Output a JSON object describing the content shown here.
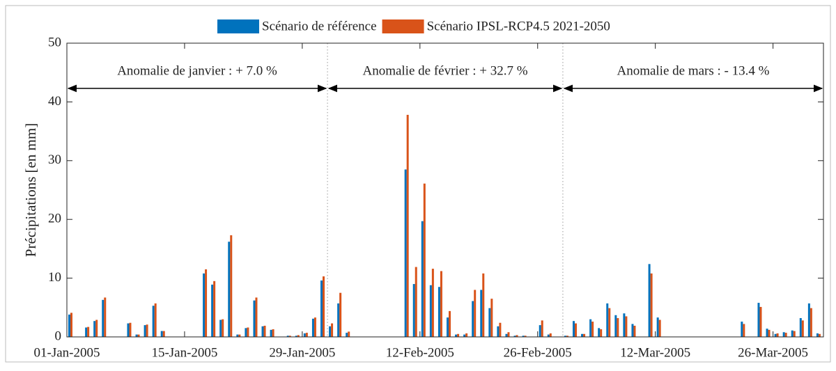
{
  "chart_data": {
    "type": "bar",
    "ylabel": "Précipitations [en mm]",
    "ylim": [
      0,
      50
    ],
    "yticks": [
      0,
      10,
      20,
      30,
      40,
      50
    ],
    "xlim": [
      "2005-01-01",
      "2005-04-01"
    ],
    "xticks": [
      {
        "value": "2005-01-01",
        "label": "01-Jan-2005"
      },
      {
        "value": "2005-01-15",
        "label": "15-Jan-2005"
      },
      {
        "value": "2005-01-29",
        "label": "29-Jan-2005"
      },
      {
        "value": "2005-02-12",
        "label": "12-Feb-2005"
      },
      {
        "value": "2005-02-26",
        "label": "26-Feb-2005"
      },
      {
        "value": "2005-03-12",
        "label": "12-Mar-2005"
      },
      {
        "value": "2005-03-26",
        "label": "26-Mar-2005"
      }
    ],
    "legend": "top",
    "annotations": [
      {
        "text": "Anomalie de janvier : + 7.0 %",
        "x": [
          "2005-01-01",
          "2005-02-01"
        ]
      },
      {
        "text": "Anomalie de février : + 32.7 %",
        "x": [
          "2005-02-01",
          "2005-03-01"
        ]
      },
      {
        "text": "Anomalie de mars : - 13.4 %",
        "x": [
          "2005-03-01",
          "2005-04-01"
        ]
      }
    ],
    "x": [
      "2005-01-01",
      "2005-01-02",
      "2005-01-03",
      "2005-01-04",
      "2005-01-05",
      "2005-01-06",
      "2005-01-07",
      "2005-01-08",
      "2005-01-09",
      "2005-01-10",
      "2005-01-11",
      "2005-01-12",
      "2005-01-13",
      "2005-01-14",
      "2005-01-15",
      "2005-01-16",
      "2005-01-17",
      "2005-01-18",
      "2005-01-19",
      "2005-01-20",
      "2005-01-21",
      "2005-01-22",
      "2005-01-23",
      "2005-01-24",
      "2005-01-25",
      "2005-01-26",
      "2005-01-27",
      "2005-01-28",
      "2005-01-29",
      "2005-01-30",
      "2005-01-31",
      "2005-02-01",
      "2005-02-02",
      "2005-02-03",
      "2005-02-04",
      "2005-02-05",
      "2005-02-06",
      "2005-02-07",
      "2005-02-08",
      "2005-02-09",
      "2005-02-10",
      "2005-02-11",
      "2005-02-12",
      "2005-02-13",
      "2005-02-14",
      "2005-02-15",
      "2005-02-16",
      "2005-02-17",
      "2005-02-18",
      "2005-02-19",
      "2005-02-20",
      "2005-02-21",
      "2005-02-22",
      "2005-02-23",
      "2005-02-24",
      "2005-02-25",
      "2005-02-26",
      "2005-02-27",
      "2005-02-28",
      "2005-03-01",
      "2005-03-02",
      "2005-03-03",
      "2005-03-04",
      "2005-03-05",
      "2005-03-06",
      "2005-03-07",
      "2005-03-08",
      "2005-03-09",
      "2005-03-10",
      "2005-03-11",
      "2005-03-12",
      "2005-03-13",
      "2005-03-14",
      "2005-03-15",
      "2005-03-16",
      "2005-03-17",
      "2005-03-18",
      "2005-03-19",
      "2005-03-20",
      "2005-03-21",
      "2005-03-22",
      "2005-03-23",
      "2005-03-24",
      "2005-03-25",
      "2005-03-26",
      "2005-03-27",
      "2005-03-28",
      "2005-03-29",
      "2005-03-30",
      "2005-03-31"
    ],
    "series": [
      {
        "name": "Scénario de référence",
        "color": "#0072bd",
        "values": [
          3.8,
          0,
          1.6,
          2.7,
          6.3,
          0,
          0,
          2.3,
          0.4,
          2.0,
          5.3,
          1.0,
          0,
          0,
          0,
          0,
          10.8,
          8.9,
          2.9,
          16.2,
          0.4,
          1.5,
          6.2,
          1.8,
          1.2,
          0,
          0.2,
          0.2,
          0.6,
          3.1,
          9.6,
          1.8,
          5.7,
          0.7,
          0,
          0,
          0,
          0,
          0,
          0,
          28.5,
          9.0,
          19.7,
          8.8,
          8.5,
          3.3,
          0.4,
          0.4,
          6.1,
          8.0,
          4.9,
          1.8,
          0.5,
          0.2,
          0.2,
          0,
          2.0,
          0.4,
          0,
          0.2,
          2.7,
          0.5,
          3.0,
          1.5,
          5.7,
          3.7,
          4.0,
          2.2,
          0,
          12.4,
          3.3,
          0,
          0,
          0,
          0,
          0,
          0,
          0,
          0,
          0,
          2.6,
          0,
          5.8,
          1.4,
          0.5,
          0.8,
          1.1,
          3.2,
          5.7,
          0.6
        ]
      },
      {
        "name": "Scénario IPSL-RCP4.5 2021-2050",
        "color": "#d95319",
        "values": [
          4.1,
          0,
          1.7,
          2.9,
          6.7,
          0,
          0,
          2.4,
          0.4,
          2.1,
          5.7,
          1.0,
          0,
          0,
          0,
          0,
          11.5,
          9.5,
          3.0,
          17.3,
          0.4,
          1.6,
          6.7,
          1.9,
          1.3,
          0,
          0.2,
          0.3,
          0.7,
          3.3,
          10.3,
          2.3,
          7.5,
          0.9,
          0,
          0,
          0,
          0,
          0,
          0,
          37.8,
          11.9,
          26.1,
          11.6,
          11.2,
          4.4,
          0.5,
          0.6,
          8.0,
          10.8,
          6.5,
          2.4,
          0.8,
          0.3,
          0.2,
          0,
          2.8,
          0.6,
          0,
          0.2,
          2.3,
          0.5,
          2.6,
          1.3,
          4.9,
          3.2,
          3.5,
          1.9,
          0,
          10.8,
          2.9,
          0,
          0,
          0,
          0,
          0,
          0,
          0,
          0,
          0,
          2.2,
          0,
          5.1,
          1.2,
          0.6,
          0.7,
          1.0,
          2.8,
          4.9,
          0.5
        ]
      }
    ]
  }
}
